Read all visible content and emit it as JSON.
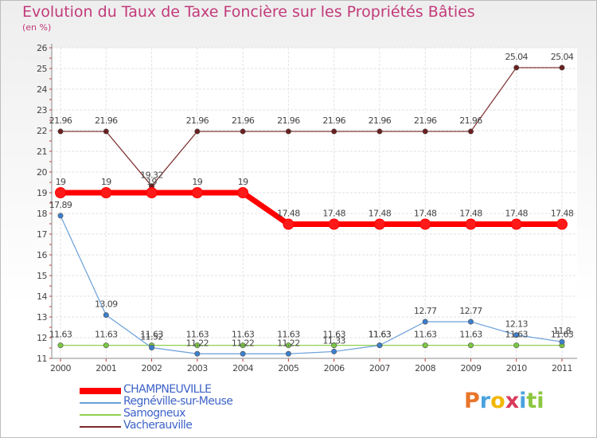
{
  "title": "Evolution du Taux de Taxe Foncière sur les Propriétés Bâties",
  "subtitle": "(en %)",
  "chart_data": {
    "type": "line",
    "categories": [
      "2000",
      "2001",
      "2002",
      "2003",
      "2004",
      "2005",
      "2006",
      "2007",
      "2008",
      "2009",
      "2010",
      "2011"
    ],
    "ylim": [
      11,
      26
    ],
    "yticks": [
      "11",
      "12",
      "13",
      "14",
      "15",
      "16",
      "17",
      "18",
      "19",
      "20",
      "21",
      "22",
      "23",
      "24",
      "25",
      "26"
    ],
    "series": [
      {
        "name": "CHAMPNEUVILLE",
        "color": "#ff0000",
        "marker": "#ff1a1a",
        "thick": true,
        "values": [
          19,
          19,
          19,
          19,
          19,
          17.48,
          17.48,
          17.48,
          17.48,
          17.48,
          17.48,
          17.48
        ],
        "labels": [
          "19",
          "19",
          "19",
          "19",
          "19",
          "17.48",
          "17.48",
          "17.48",
          "17.48",
          "17.48",
          "17.48",
          "17.48"
        ]
      },
      {
        "name": "Regnéville-sur-Meuse",
        "color": "#6a9fd8",
        "marker": "#3b7fcc",
        "thick": false,
        "values": [
          17.89,
          13.09,
          11.52,
          11.22,
          11.22,
          11.22,
          11.33,
          11.63,
          12.77,
          12.77,
          12.13,
          11.8
        ],
        "labels": [
          "17.89",
          "13.09",
          "11.52",
          "11.22",
          "11.22",
          "11.22",
          "11.33",
          "11.63",
          "12.77",
          "12.77",
          "12.13",
          "11.8"
        ]
      },
      {
        "name": "Samogneux",
        "color": "#8fd14f",
        "marker": "#7ac943",
        "thick": false,
        "values": [
          11.63,
          11.63,
          11.63,
          11.63,
          11.63,
          11.63,
          11.63,
          11.63,
          11.63,
          11.63,
          11.63,
          11.63
        ],
        "labels": [
          "11.63",
          "11.63",
          "11.63",
          "11.63",
          "11.63",
          "11.63",
          "11.63",
          "11.63",
          "11.63",
          "11.63",
          "11.63",
          "11.63"
        ]
      },
      {
        "name": "Vacherauville",
        "color": "#7b2a2a",
        "marker": "#6b1f1f",
        "thick": false,
        "values": [
          21.96,
          21.96,
          19.32,
          21.96,
          21.96,
          21.96,
          21.96,
          21.96,
          21.96,
          21.96,
          25.04,
          25.04
        ],
        "labels": [
          "21.96",
          "21.96",
          "19.32",
          "21.96",
          "21.96",
          "21.96",
          "21.96",
          "21.96",
          "21.96",
          "21.96",
          "25.04",
          "25.04"
        ]
      }
    ]
  },
  "logo": {
    "letters": [
      "P",
      "r",
      "o",
      "x",
      "i",
      "t",
      "i"
    ],
    "colors": [
      "#e8752a",
      "#4aa3df",
      "#f2b705",
      "#d93a5a",
      "#4aa3df",
      "#8cc63f",
      "#8cc63f"
    ]
  }
}
